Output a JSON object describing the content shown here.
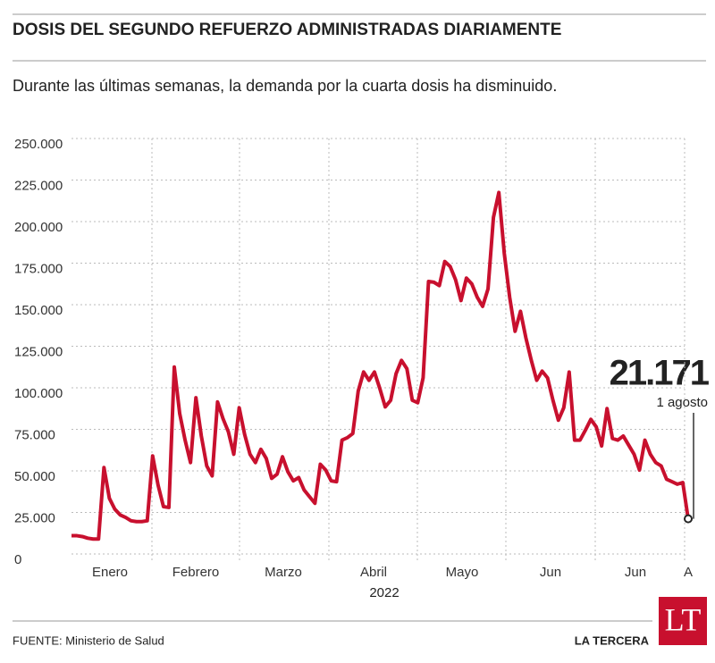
{
  "chart_data": {
    "type": "line",
    "title": "DOSIS DEL SEGUNDO REFUERZO ADMINISTRADAS DIARIAMENTE",
    "subtitle": "Durante las últimas semanas, la demanda por la cuarta dosis ha disminuido.",
    "x_labels": [
      "Enero",
      "Febrero",
      "Marzo",
      "Abril",
      "Mayo",
      "Jun",
      "Jun",
      "A"
    ],
    "x_axis_label": "2022",
    "color": "#c8102e",
    "grid": true,
    "values": [
      11000,
      11000,
      10500,
      9500,
      9000,
      9000,
      52000,
      33500,
      27000,
      23500,
      22000,
      20000,
      19500,
      19500,
      20000,
      59000,
      41500,
      28500,
      28000,
      112500,
      84500,
      68500,
      55000,
      94000,
      71000,
      53000,
      47000,
      91500,
      81500,
      73500,
      60000,
      88000,
      72000,
      60000,
      55000,
      63000,
      57500,
      45500,
      48000,
      58500,
      49500,
      44000,
      46000,
      38500,
      34500,
      30500,
      54000,
      50500,
      44000,
      43500,
      68500,
      70000,
      72500,
      98000,
      109500,
      104500,
      109500,
      99500,
      88500,
      92500,
      108500,
      116500,
      111500,
      92500,
      91000,
      106000,
      164000,
      163500,
      161500,
      176000,
      173000,
      165000,
      152500,
      166000,
      162500,
      154500,
      149000,
      159500,
      202500,
      217500,
      181000,
      154500,
      134000,
      146000,
      130000,
      116500,
      104500,
      110000,
      106000,
      92500,
      80500,
      88000,
      109500,
      68500,
      68500,
      74500,
      81000,
      76500,
      65000,
      87500,
      69500,
      68500,
      71000,
      65500,
      60000,
      50500,
      68500,
      60000,
      55000,
      53000,
      45000,
      43500,
      42000,
      43000,
      21171
    ],
    "ylim": [
      0,
      250000
    ],
    "yticks": [
      0,
      {
        "value": 25000,
        "label": "25.000"
      },
      {
        "value": 50000,
        "label": "50.000"
      },
      {
        "value": 75000,
        "label": "75.000"
      },
      {
        "value": 100000,
        "label": "100.000"
      },
      {
        "value": 125000,
        "label": "125.000"
      },
      {
        "value": 150000,
        "label": "150.000"
      },
      {
        "value": 175000,
        "label": "175.000"
      },
      {
        "value": 200000,
        "label": "200.000"
      },
      {
        "value": 225000,
        "label": "225.000"
      },
      {
        "value": 250000,
        "label": "250.000"
      }
    ],
    "annotation": {
      "value_label": "21.171",
      "date": "1 agosto"
    },
    "source": "FUENTE: Ministerio de Salud",
    "publisher": "LA TERCERA",
    "logo": "LT"
  }
}
